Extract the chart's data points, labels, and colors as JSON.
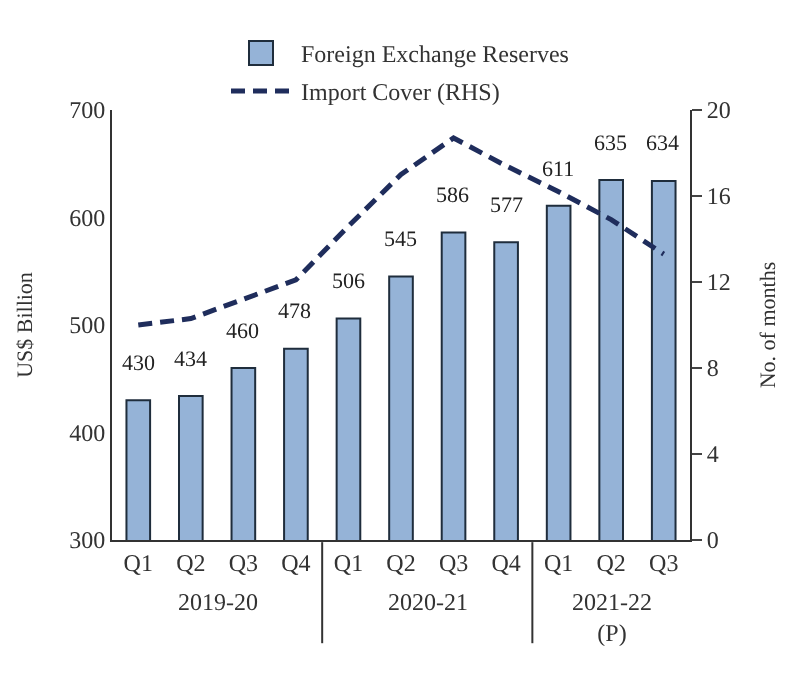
{
  "chart_data": {
    "type": "bar",
    "categories": [
      "Q1",
      "Q2",
      "Q3",
      "Q4",
      "Q1",
      "Q2",
      "Q3",
      "Q4",
      "Q1",
      "Q2",
      "Q3"
    ],
    "series": [
      {
        "name": "Foreign Exchange Reserves",
        "color": "#95b3d7",
        "values": [
          430,
          434,
          460,
          478,
          506,
          545,
          586,
          577,
          611,
          635,
          634
        ],
        "value_labels": [
          "430",
          "434",
          "460",
          "478",
          "506",
          "545",
          "586",
          "577",
          "611",
          "635",
          "634"
        ]
      },
      {
        "name": "Import Cover (RHS)",
        "type": "line",
        "axis": "y2",
        "color": "#1f2d5c",
        "line_style": "dashed",
        "values": [
          10.0,
          10.3,
          11.2,
          12.1,
          14.6,
          17.0,
          18.7,
          17.4,
          16.2,
          14.9,
          13.3
        ]
      }
    ],
    "ylabel": "US$ Billion",
    "y2label": "No. of months",
    "ylim": [
      300,
      700
    ],
    "yticks": [
      300,
      400,
      500,
      600,
      700
    ],
    "y2lim": [
      0,
      20
    ],
    "y2ticks": [
      0,
      4,
      8,
      12,
      16,
      20
    ],
    "annotations": [
      "2019-20",
      "2020-21",
      "2021-22\n(P)"
    ],
    "legend": "top",
    "marker": "none"
  }
}
